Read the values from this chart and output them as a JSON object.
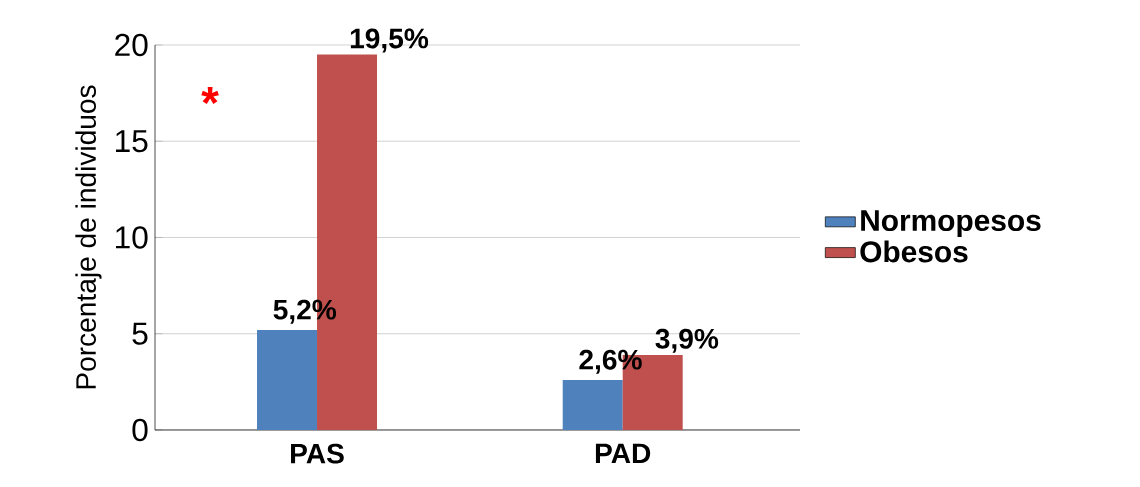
{
  "chart_data": {
    "type": "bar",
    "ylabel": "Porcentaje de individuos",
    "categories": [
      "PAS",
      "PAD"
    ],
    "series": [
      {
        "name": "Normopesos",
        "color": "#4f81bd",
        "values": [
          5.2,
          2.6
        ],
        "value_labels": [
          "5,2%",
          "2,6%"
        ]
      },
      {
        "name": "Obesos",
        "color": "#c0504d",
        "values": [
          19.5,
          3.9
        ],
        "value_labels": [
          "19,5%",
          "3,9%"
        ]
      }
    ],
    "annotations": [
      {
        "text": "*",
        "x": "PAS",
        "y": 17
      }
    ],
    "ylim": [
      0,
      20
    ],
    "yticks": [
      0,
      5,
      10,
      15,
      20
    ],
    "grid": "y",
    "legend": "right"
  }
}
